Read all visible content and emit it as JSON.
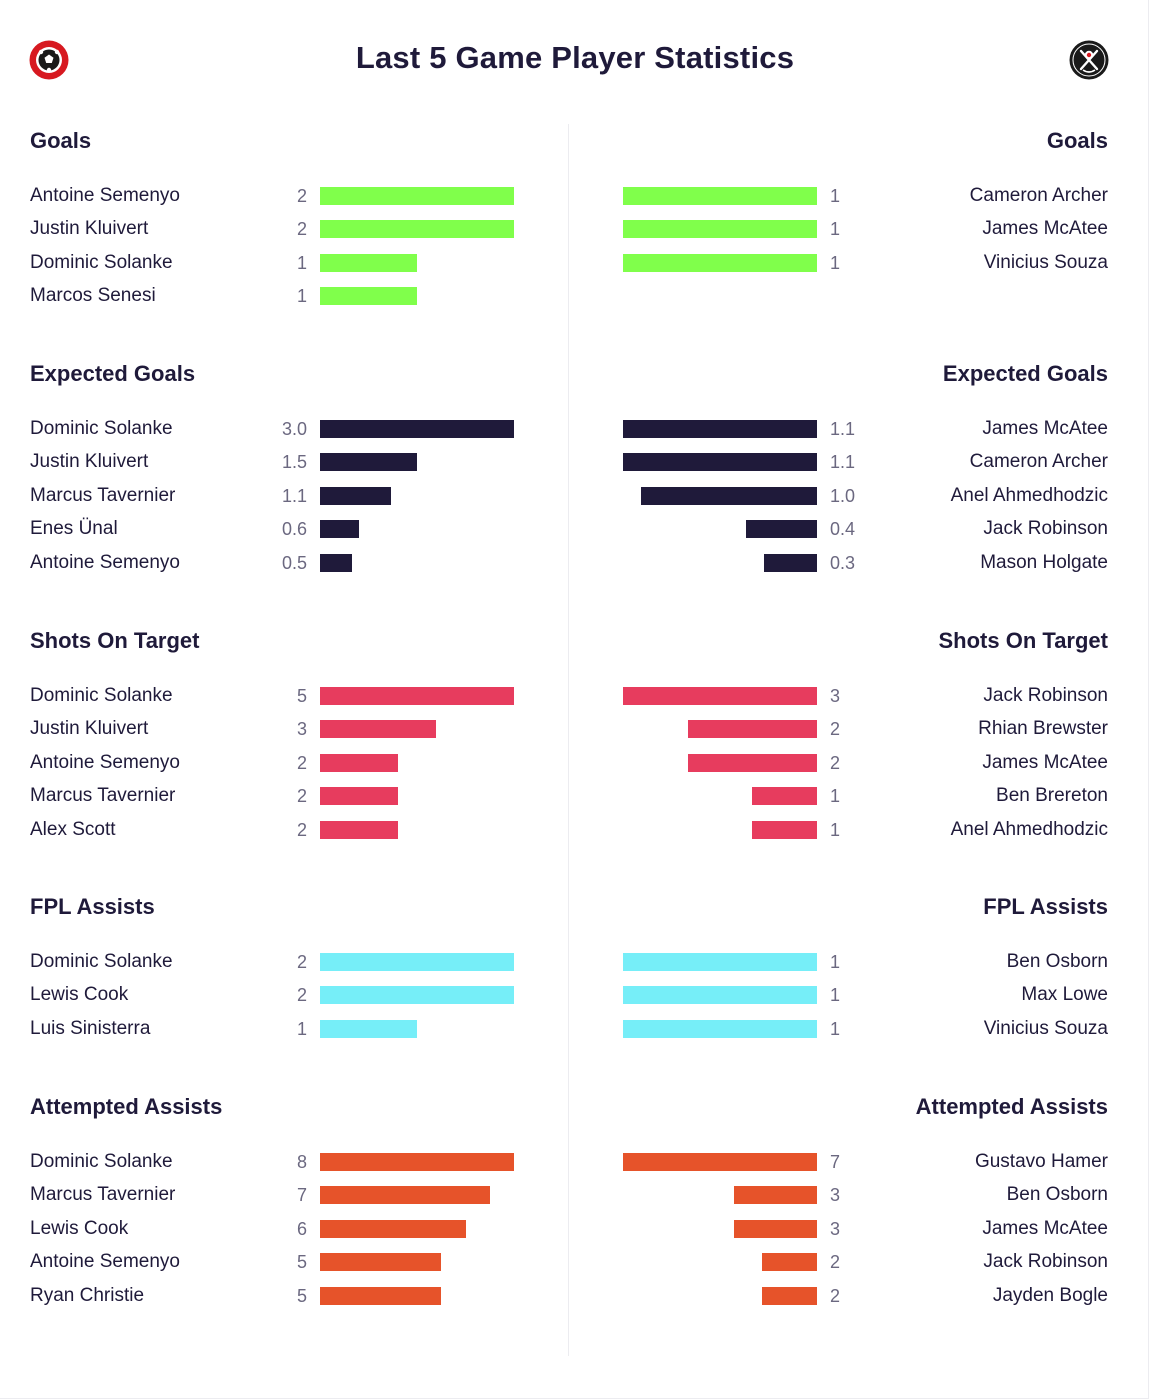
{
  "title": "Last 5 Game Player Statistics",
  "colors": {
    "text": "#1f1a3a",
    "value": "#6b6880",
    "home_logo": "#d71920",
    "away_logo": "#1a1a1a"
  },
  "logos": {
    "home": "football-club-crest-icon",
    "away": "blades-crest-icon"
  },
  "chart_data": [
    {
      "type": "bar",
      "title": "Goals",
      "color": "#80ff4b",
      "home": [
        {
          "name": "Antoine Semenyo",
          "value": 2,
          "label": "2"
        },
        {
          "name": "Justin Kluivert",
          "value": 2,
          "label": "2"
        },
        {
          "name": "Dominic Solanke",
          "value": 1,
          "label": "1"
        },
        {
          "name": "Marcos Senesi",
          "value": 1,
          "label": "1"
        }
      ],
      "away": [
        {
          "name": "Cameron Archer",
          "value": 1,
          "label": "1"
        },
        {
          "name": "James McAtee",
          "value": 1,
          "label": "1"
        },
        {
          "name": "Vinicius Souza",
          "value": 1,
          "label": "1"
        }
      ]
    },
    {
      "type": "bar",
      "title": "Expected Goals",
      "color": "#1f1a3a",
      "home": [
        {
          "name": "Dominic Solanke",
          "value": 3.0,
          "label": "3.0"
        },
        {
          "name": "Justin Kluivert",
          "value": 1.5,
          "label": "1.5"
        },
        {
          "name": "Marcus Tavernier",
          "value": 1.1,
          "label": "1.1"
        },
        {
          "name": "Enes Ünal",
          "value": 0.6,
          "label": "0.6"
        },
        {
          "name": "Antoine Semenyo",
          "value": 0.5,
          "label": "0.5"
        }
      ],
      "away": [
        {
          "name": "James McAtee",
          "value": 1.1,
          "label": "1.1"
        },
        {
          "name": "Cameron Archer",
          "value": 1.1,
          "label": "1.1"
        },
        {
          "name": "Anel Ahmedhodzic",
          "value": 1.0,
          "label": "1.0"
        },
        {
          "name": "Jack Robinson",
          "value": 0.4,
          "label": "0.4"
        },
        {
          "name": "Mason Holgate",
          "value": 0.3,
          "label": "0.3"
        }
      ]
    },
    {
      "type": "bar",
      "title": "Shots On Target",
      "color": "#e73c5e",
      "home": [
        {
          "name": "Dominic Solanke",
          "value": 5,
          "label": "5"
        },
        {
          "name": "Justin Kluivert",
          "value": 3,
          "label": "3"
        },
        {
          "name": "Antoine Semenyo",
          "value": 2,
          "label": "2"
        },
        {
          "name": "Marcus Tavernier",
          "value": 2,
          "label": "2"
        },
        {
          "name": "Alex Scott",
          "value": 2,
          "label": "2"
        }
      ],
      "away": [
        {
          "name": "Jack Robinson",
          "value": 3,
          "label": "3"
        },
        {
          "name": "Rhian Brewster",
          "value": 2,
          "label": "2"
        },
        {
          "name": "James McAtee",
          "value": 2,
          "label": "2"
        },
        {
          "name": "Ben Brereton",
          "value": 1,
          "label": "1"
        },
        {
          "name": "Anel Ahmedhodzic",
          "value": 1,
          "label": "1"
        }
      ]
    },
    {
      "type": "bar",
      "title": "FPL Assists",
      "color": "#76eef8",
      "home": [
        {
          "name": "Dominic Solanke",
          "value": 2,
          "label": "2"
        },
        {
          "name": "Lewis Cook",
          "value": 2,
          "label": "2"
        },
        {
          "name": "Luis Sinisterra",
          "value": 1,
          "label": "1"
        }
      ],
      "away": [
        {
          "name": "Ben Osborn",
          "value": 1,
          "label": "1"
        },
        {
          "name": "Max Lowe",
          "value": 1,
          "label": "1"
        },
        {
          "name": "Vinicius Souza",
          "value": 1,
          "label": "1"
        }
      ]
    },
    {
      "type": "bar",
      "title": "Attempted Assists",
      "color": "#e6532a",
      "home": [
        {
          "name": "Dominic Solanke",
          "value": 8,
          "label": "8"
        },
        {
          "name": "Marcus Tavernier",
          "value": 7,
          "label": "7"
        },
        {
          "name": "Lewis Cook",
          "value": 6,
          "label": "6"
        },
        {
          "name": "Antoine Semenyo",
          "value": 5,
          "label": "5"
        },
        {
          "name": "Ryan Christie",
          "value": 5,
          "label": "5"
        }
      ],
      "away": [
        {
          "name": "Gustavo Hamer",
          "value": 7,
          "label": "7"
        },
        {
          "name": "Ben Osborn",
          "value": 3,
          "label": "3"
        },
        {
          "name": "James McAtee",
          "value": 3,
          "label": "3"
        },
        {
          "name": "Jack Robinson",
          "value": 2,
          "label": "2"
        },
        {
          "name": "Jayden Bogle",
          "value": 2,
          "label": "2"
        }
      ]
    }
  ]
}
